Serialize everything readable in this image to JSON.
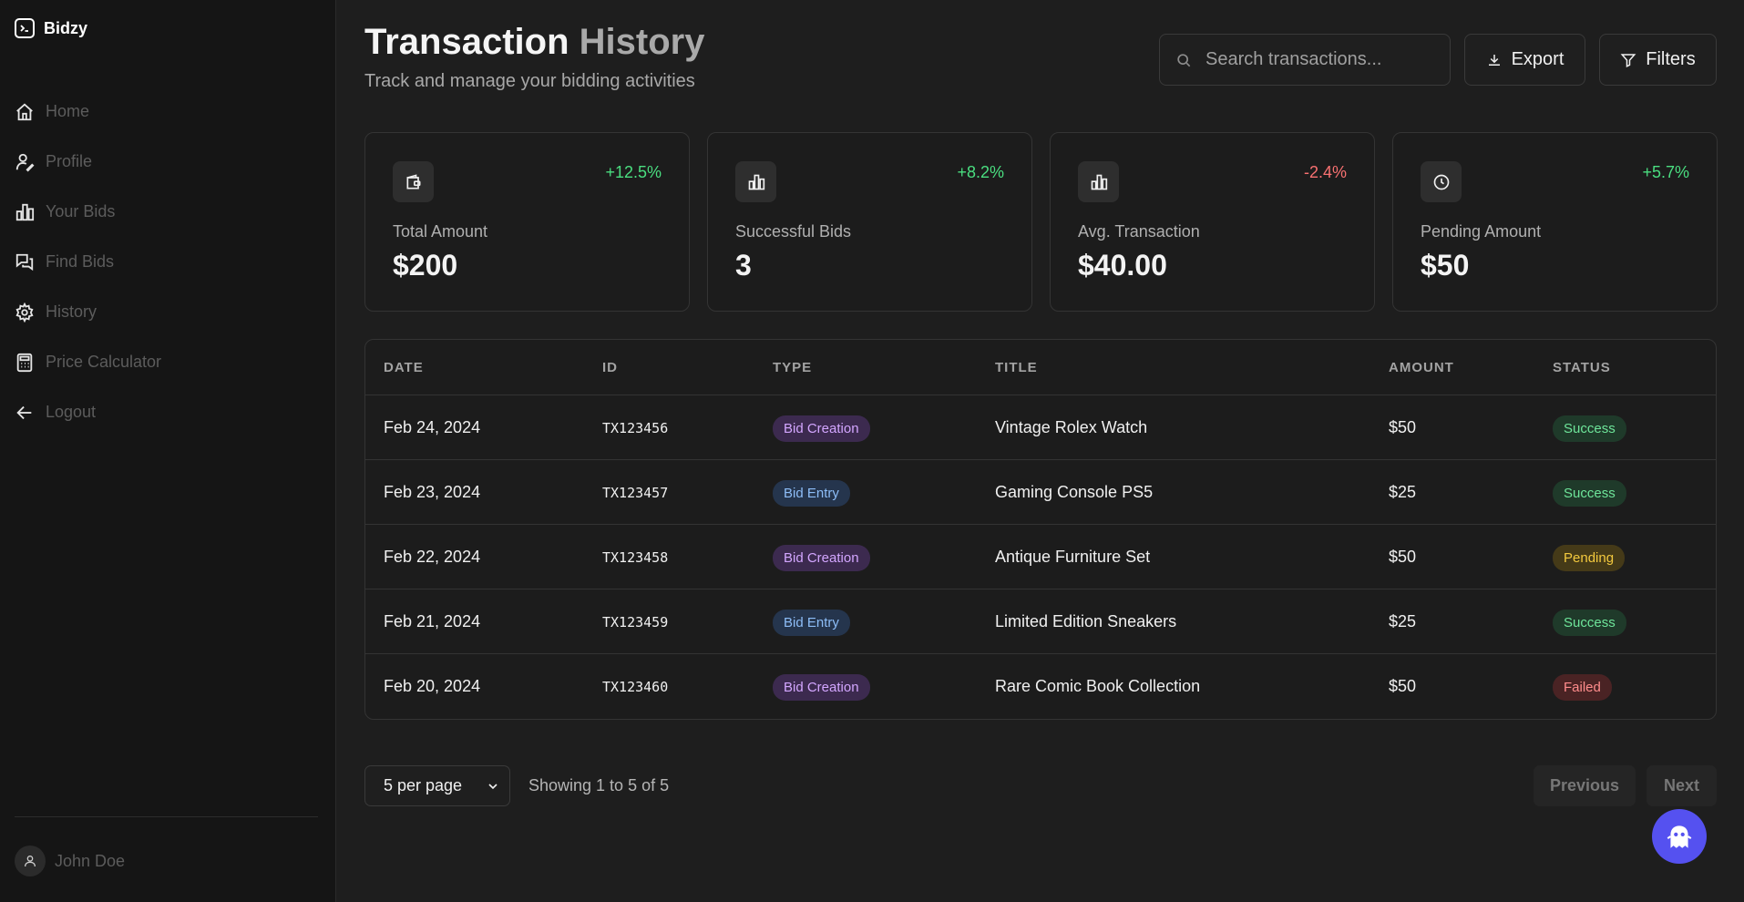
{
  "app": {
    "name": "Bidzy"
  },
  "sidebar": {
    "items": [
      {
        "label": "Home",
        "icon": "home-icon"
      },
      {
        "label": "Profile",
        "icon": "user-edit-icon"
      },
      {
        "label": "Your Bids",
        "icon": "bar-chart-icon"
      },
      {
        "label": "Find Bids",
        "icon": "messages-icon"
      },
      {
        "label": "History",
        "icon": "gear-icon"
      },
      {
        "label": "Price Calculator",
        "icon": "calculator-icon"
      },
      {
        "label": "Logout",
        "icon": "arrow-left-icon"
      }
    ],
    "user": {
      "name": "John Doe"
    }
  },
  "header": {
    "title_part1": "Transaction",
    "title_part2": "History",
    "subtitle": "Track and manage your bidding activities",
    "search_placeholder": "Search transactions...",
    "export_label": "Export",
    "filters_label": "Filters"
  },
  "stats": [
    {
      "label": "Total Amount",
      "value": "$200",
      "change": "+12.5%",
      "icon": "wallet-icon",
      "trend": "up"
    },
    {
      "label": "Successful Bids",
      "value": "3",
      "change": "+8.2%",
      "icon": "bar-chart-icon",
      "trend": "up"
    },
    {
      "label": "Avg. Transaction",
      "value": "$40.00",
      "change": "-2.4%",
      "icon": "bar-chart-icon",
      "trend": "down"
    },
    {
      "label": "Pending Amount",
      "value": "$50",
      "change": "+5.7%",
      "icon": "clock-icon",
      "trend": "up"
    }
  ],
  "colors": {
    "up": "#4ade80",
    "down": "#f87171",
    "accent": "#5551f0"
  },
  "table": {
    "headers": [
      "DATE",
      "ID",
      "TYPE",
      "TITLE",
      "AMOUNT",
      "STATUS"
    ],
    "rows": [
      {
        "date": "Feb 24, 2024",
        "id": "TX123456",
        "type": "Bid Creation",
        "title": "Vintage Rolex Watch",
        "amount": "$50",
        "status": "Success"
      },
      {
        "date": "Feb 23, 2024",
        "id": "TX123457",
        "type": "Bid Entry",
        "title": "Gaming Console PS5",
        "amount": "$25",
        "status": "Success"
      },
      {
        "date": "Feb 22, 2024",
        "id": "TX123458",
        "type": "Bid Creation",
        "title": "Antique Furniture Set",
        "amount": "$50",
        "status": "Pending"
      },
      {
        "date": "Feb 21, 2024",
        "id": "TX123459",
        "type": "Bid Entry",
        "title": "Limited Edition Sneakers",
        "amount": "$25",
        "status": "Success"
      },
      {
        "date": "Feb 20, 2024",
        "id": "TX123460",
        "type": "Bid Creation",
        "title": "Rare Comic Book Collection",
        "amount": "$50",
        "status": "Failed"
      }
    ]
  },
  "pagination": {
    "per_page": "5 per page",
    "showing": "Showing 1 to 5 of 5",
    "previous": "Previous",
    "next": "Next"
  }
}
